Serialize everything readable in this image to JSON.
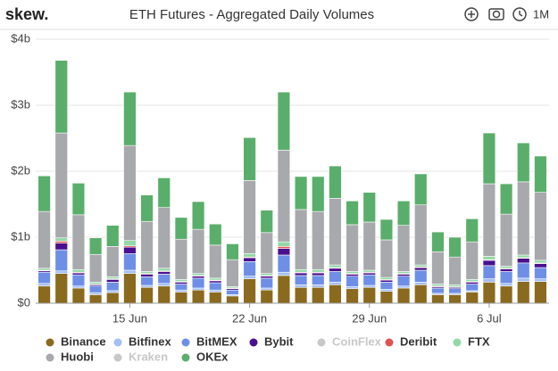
{
  "header": {
    "logo": "skew.",
    "range_button": "1M"
  },
  "chart_data": {
    "type": "stacked_bar",
    "title": "ETH Futures - Aggregated Daily Volumes",
    "categories": [
      null,
      null,
      null,
      null,
      null,
      "15 Jun",
      null,
      null,
      null,
      null,
      null,
      null,
      "22 Jun",
      null,
      null,
      null,
      null,
      null,
      null,
      "29 Jun",
      null,
      null,
      null,
      null,
      null,
      null,
      "6 Jul",
      null,
      null,
      null
    ],
    "ylim": [
      0,
      4
    ],
    "yticks": [
      {
        "value": 0,
        "label": "$0"
      },
      {
        "value": 1,
        "label": "$1b"
      },
      {
        "value": 2,
        "label": "$2b"
      },
      {
        "value": 3,
        "label": "$3b"
      },
      {
        "value": 4,
        "label": "$4b"
      }
    ],
    "grid": true,
    "series": [
      {
        "name": "Binance",
        "color": "#8a6a1e",
        "values": [
          0.26,
          0.45,
          0.23,
          0.13,
          0.16,
          0.45,
          0.24,
          0.26,
          0.17,
          0.2,
          0.17,
          0.11,
          0.37,
          0.2,
          0.42,
          0.24,
          0.24,
          0.28,
          0.22,
          0.24,
          0.18,
          0.23,
          0.28,
          0.13,
          0.13,
          0.17,
          0.32,
          0.26,
          0.33,
          0.33
        ]
      },
      {
        "name": "Bitfinex",
        "color": "#a4bff2",
        "values": [
          0.04,
          0.04,
          0.03,
          0.03,
          0.03,
          0.05,
          0.03,
          0.04,
          0.03,
          0.03,
          0.03,
          0.02,
          0.04,
          0.03,
          0.05,
          0.04,
          0.04,
          0.04,
          0.03,
          0.03,
          0.03,
          0.03,
          0.04,
          0.02,
          0.02,
          0.02,
          0.05,
          0.04,
          0.05,
          0.04
        ]
      },
      {
        "name": "BitMEX",
        "color": "#6f8fe6",
        "values": [
          0.17,
          0.32,
          0.17,
          0.1,
          0.13,
          0.25,
          0.13,
          0.14,
          0.09,
          0.15,
          0.11,
          0.07,
          0.22,
          0.15,
          0.26,
          0.14,
          0.14,
          0.16,
          0.16,
          0.16,
          0.11,
          0.15,
          0.18,
          0.08,
          0.07,
          0.1,
          0.2,
          0.18,
          0.23,
          0.17
        ]
      },
      {
        "name": "Bybit",
        "color": "#4a0f8f",
        "values": [
          0.02,
          0.1,
          0.03,
          0.02,
          0.04,
          0.1,
          0.04,
          0.04,
          0.03,
          0.03,
          0.03,
          0.02,
          0.06,
          0.03,
          0.1,
          0.04,
          0.04,
          0.05,
          0.03,
          0.03,
          0.03,
          0.03,
          0.04,
          0.02,
          0.02,
          0.03,
          0.08,
          0.04,
          0.07,
          0.06
        ]
      },
      {
        "name": "CoinFlex",
        "color": "#c8c8c8",
        "hidden": true
      },
      {
        "name": "Deribit",
        "color": "#e05252",
        "values": [
          0.01,
          0.03,
          0.01,
          0.01,
          0.01,
          0.02,
          0.01,
          0.01,
          0.01,
          0.01,
          0.01,
          0.01,
          0.01,
          0.01,
          0.03,
          0.01,
          0.01,
          0.01,
          0.01,
          0.01,
          0.01,
          0.01,
          0.01,
          0.01,
          0.01,
          0.01,
          0.01,
          0.01,
          0.01,
          0.01
        ]
      },
      {
        "name": "FTX",
        "color": "#93d8a6",
        "values": [
          0.03,
          0.05,
          0.04,
          0.03,
          0.03,
          0.08,
          0.03,
          0.04,
          0.03,
          0.03,
          0.03,
          0.02,
          0.05,
          0.03,
          0.07,
          0.04,
          0.04,
          0.04,
          0.03,
          0.03,
          0.03,
          0.03,
          0.03,
          0.03,
          0.03,
          0.03,
          0.05,
          0.03,
          0.04,
          0.04
        ]
      },
      {
        "name": "Huobi",
        "color": "#a8a9ad",
        "values": [
          0.86,
          1.59,
          0.83,
          0.42,
          0.46,
          1.44,
          0.76,
          0.92,
          0.61,
          0.67,
          0.5,
          0.41,
          1.11,
          0.62,
          1.39,
          0.91,
          0.88,
          1.01,
          0.71,
          0.73,
          0.57,
          0.7,
          0.91,
          0.49,
          0.42,
          0.57,
          1.1,
          0.79,
          1.11,
          1.03
        ]
      },
      {
        "name": "Kraken",
        "color": "#c8c8c8",
        "hidden": true
      },
      {
        "name": "OKEx",
        "color": "#5aae6b",
        "values": [
          0.54,
          1.1,
          0.48,
          0.25,
          0.32,
          0.81,
          0.4,
          0.45,
          0.33,
          0.42,
          0.32,
          0.24,
          0.65,
          0.34,
          0.88,
          0.5,
          0.53,
          0.49,
          0.36,
          0.45,
          0.31,
          0.37,
          0.47,
          0.3,
          0.3,
          0.35,
          0.77,
          0.46,
          0.59,
          0.55
        ]
      }
    ]
  }
}
